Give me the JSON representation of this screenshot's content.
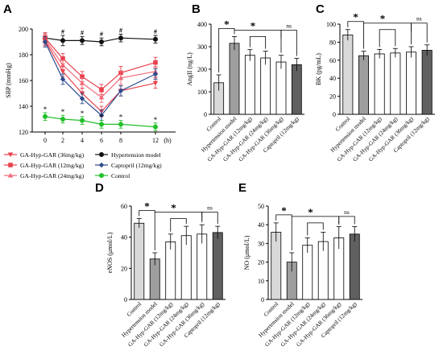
{
  "figure": {
    "panel_labels": [
      "A",
      "B",
      "C",
      "D",
      "E"
    ]
  },
  "chart_data": [
    {
      "panel": "A",
      "type": "line",
      "xlabel": "(h)",
      "ylabel": "SBP (mmHg)",
      "x": [
        0,
        2,
        4,
        6,
        8,
        12
      ],
      "x_ticks": [
        "0",
        "2",
        "4",
        "6",
        "8",
        "12"
      ],
      "ylim": [
        120,
        200
      ],
      "y_ticks": [
        "120",
        "140",
        "160",
        "180",
        "200"
      ],
      "grid": false,
      "series": [
        {
          "name": "Hypertension model",
          "color": "#111111",
          "marker": "circle",
          "values": [
            193,
            191,
            191,
            190,
            193,
            192
          ],
          "errors": [
            4,
            4,
            3,
            3,
            3,
            3
          ]
        },
        {
          "name": "GA-Hyp-GAR (12mg/kg)",
          "color": "#e8414e",
          "marker": "square",
          "values": [
            193,
            177,
            163,
            153,
            166,
            174
          ],
          "errors": [
            4,
            4,
            4,
            4,
            5,
            4
          ]
        },
        {
          "name": "GA-Hyp-GAR (24mg/kg)",
          "color": "#f06a78",
          "marker": "triangle-up",
          "values": [
            192,
            172,
            158,
            147,
            162,
            167
          ],
          "errors": [
            4,
            4,
            4,
            4,
            5,
            4
          ]
        },
        {
          "name": "GA-Hyp-GAR (36mg/kg)",
          "color": "#e8414e",
          "marker": "triangle-down",
          "values": [
            191,
            167,
            150,
            136,
            152,
            158
          ],
          "errors": [
            4,
            4,
            4,
            4,
            4,
            4
          ]
        },
        {
          "name": "Captopril (12mg/kg)",
          "color": "#2c4a8c",
          "marker": "diamond",
          "values": [
            190,
            161,
            146,
            133,
            152,
            165
          ],
          "errors": [
            4,
            4,
            4,
            4,
            4,
            4
          ]
        },
        {
          "name": "Control",
          "color": "#22c02a",
          "marker": "circle",
          "values": [
            132,
            130,
            129,
            126,
            126,
            124
          ],
          "errors": [
            3,
            3,
            3,
            3,
            3,
            3
          ]
        }
      ],
      "annotations": {
        "hash_label": "#",
        "star_label": "*",
        "hash_at_x": [
          2,
          4,
          6,
          8,
          12
        ],
        "star_at_x": [
          0,
          2,
          4,
          6,
          8,
          12
        ]
      },
      "legend": [
        {
          "label": "GA-Hyp-GAR (36mg/kg)",
          "series": 3
        },
        {
          "label": "Hypertension model",
          "series": 0
        },
        {
          "label": "GA-Hyp-GAR (12mg/kg)",
          "series": 1
        },
        {
          "label": "Captopril (12mg/kg)",
          "series": 4
        },
        {
          "label": "GA-Hyp-GAR (24mg/kg)",
          "series": 2
        },
        {
          "label": "Control",
          "series": 5
        }
      ],
      "legend_position": "below"
    },
    {
      "panel": "B",
      "type": "bar",
      "ylabel": "AngII (ng/L)",
      "ylim": [
        0,
        400
      ],
      "y_ticks": [
        "0",
        "100",
        "200",
        "300",
        "400"
      ],
      "categories": [
        "Control",
        "Hypertension model",
        "GA-Hyp-GAR (12mg/kg)",
        "GA-Hyp-GAR (24mg/kg)",
        "GA-Hyp-GAR (36mg/kg)",
        "Captopril (12mg/kg)"
      ],
      "values": [
        140,
        315,
        262,
        250,
        232,
        220
      ],
      "errors": [
        35,
        30,
        25,
        30,
        30,
        28
      ],
      "bar_fills": [
        "#d9d9d9",
        "#9e9e9e",
        "#ffffff",
        "#ffffff",
        "#ffffff",
        "#606060"
      ],
      "significance": {
        "star_label": "*",
        "ns_label": "ns"
      }
    },
    {
      "panel": "C",
      "type": "bar",
      "ylabel": "BK (pg/mL)",
      "ylim": [
        0,
        100
      ],
      "y_ticks": [
        "0",
        "20",
        "40",
        "60",
        "80",
        "100"
      ],
      "categories": [
        "Control",
        "Hypertension model",
        "GA-Hyp-GAR (12mg/kg)",
        "GA-Hyp-GAR (24mg/kg)",
        "GA-Hyp-GAR (36mg/kg)",
        "Captopril (12mg/kg)"
      ],
      "values": [
        88,
        65,
        67,
        68,
        69,
        71
      ],
      "errors": [
        6,
        5,
        5,
        5,
        6,
        6
      ],
      "bar_fills": [
        "#d9d9d9",
        "#9e9e9e",
        "#ffffff",
        "#ffffff",
        "#ffffff",
        "#606060"
      ],
      "significance": {
        "star_label": "*",
        "ns_label": "ns"
      }
    },
    {
      "panel": "D",
      "type": "bar",
      "ylabel": "eNOS (μmol/L)",
      "ylim": [
        0,
        60
      ],
      "y_ticks": [
        "0",
        "20",
        "40",
        "60"
      ],
      "categories": [
        "Control",
        "Hypertension model",
        "GA-Hyp-GAR (12mg/kg)",
        "GA-Hyp-GAR (24mg/kg)",
        "GA-Hyp-GAR (36mg/kg)",
        "Captopril (12mg/kg)"
      ],
      "values": [
        49,
        26,
        37,
        41,
        42,
        43
      ],
      "errors": [
        3,
        4,
        5,
        6,
        6,
        4
      ],
      "bar_fills": [
        "#d9d9d9",
        "#9e9e9e",
        "#ffffff",
        "#ffffff",
        "#ffffff",
        "#606060"
      ],
      "significance": {
        "star_label": "*",
        "ns_label": "ns"
      }
    },
    {
      "panel": "E",
      "type": "bar",
      "ylabel": "NO (μmol/L)",
      "ylim": [
        0,
        50
      ],
      "y_ticks": [
        "0",
        "10",
        "20",
        "30",
        "40",
        "50"
      ],
      "categories": [
        "Control",
        "Hypertension model",
        "GA-Hyp-GAR (12mg/kg)",
        "GA-Hyp-GAR (24mg/kg)",
        "GA-Hyp-GAR (36mg/kg)",
        "Captopril (12mg/kg)"
      ],
      "values": [
        36,
        20,
        29,
        31,
        33,
        35
      ],
      "errors": [
        5,
        5,
        4,
        5,
        6,
        4
      ],
      "bar_fills": [
        "#d9d9d9",
        "#9e9e9e",
        "#ffffff",
        "#ffffff",
        "#ffffff",
        "#606060"
      ],
      "significance": {
        "star_label": "*",
        "ns_label": "ns"
      }
    }
  ]
}
